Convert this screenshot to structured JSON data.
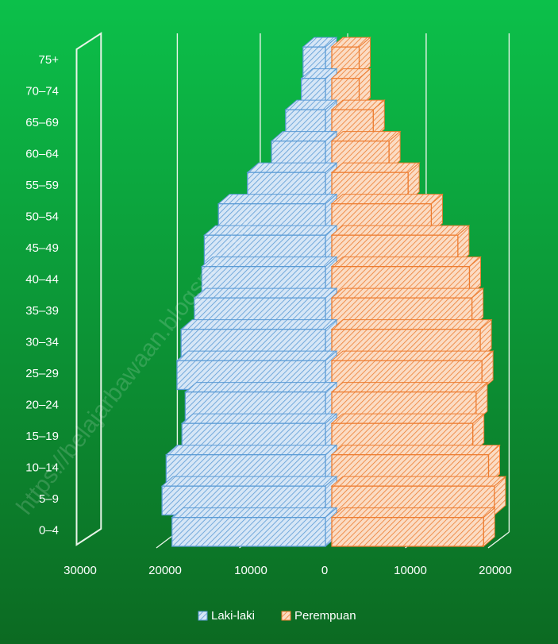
{
  "chart_data": {
    "type": "bar",
    "orientation": "horizontal",
    "style": "3d population pyramid",
    "categories": [
      "0–4",
      "5–9",
      "10–14",
      "15–19",
      "20–24",
      "25–29",
      "30–34",
      "35–39",
      "40–44",
      "45–49",
      "50–54",
      "55–59",
      "60–64",
      "65–69",
      "70–74",
      "75+"
    ],
    "series": [
      {
        "name": "Laki-laki",
        "values": [
          18500,
          19700,
          19200,
          17300,
          16900,
          17900,
          17400,
          15800,
          14900,
          14600,
          12900,
          9400,
          6500,
          4800,
          2900,
          2700
        ]
      },
      {
        "name": "Perempuan",
        "values": [
          18300,
          19600,
          18900,
          17000,
          17400,
          18100,
          17900,
          16900,
          16600,
          15200,
          12000,
          9200,
          6900,
          5000,
          3300,
          3300
        ]
      }
    ],
    "x_ticks": [
      "30000",
      "20000",
      "10000",
      "0",
      "10000",
      "20000"
    ],
    "xlim": [
      -30000,
      20000
    ],
    "grid": true,
    "legend_position": "bottom",
    "colors": {
      "background_top": "#0cc04a",
      "background_bottom": "#0c6a22",
      "male_fill": "#d6e6f6",
      "male_stroke": "#5b9bd5",
      "female_fill": "#fbdcc4",
      "female_stroke": "#ed7d31",
      "grid": "#e8f4e8",
      "text": "#ffffff"
    }
  },
  "watermark": "https://belajarbawaan.blogspot.com"
}
